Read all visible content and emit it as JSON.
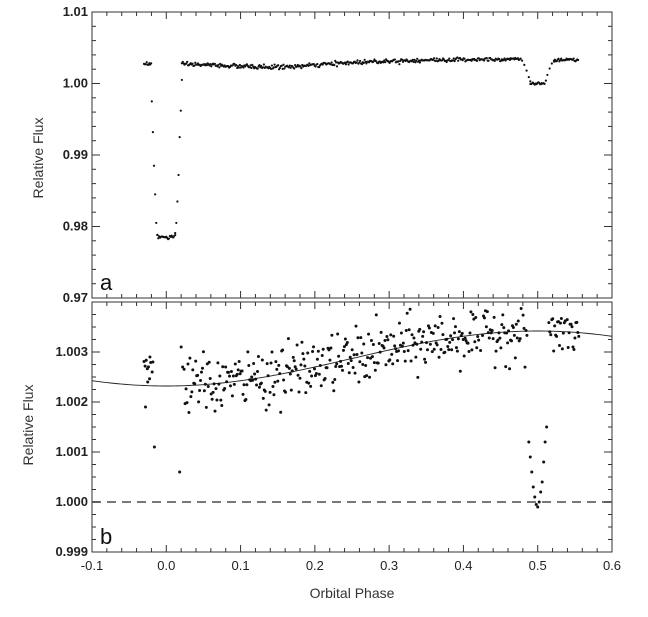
{
  "chart_data": [
    {
      "type": "scatter",
      "panel_label": "a",
      "ylabel": "Relative Flux",
      "xlabel": "",
      "xlim": [
        -0.1,
        0.6
      ],
      "ylim": [
        0.97,
        1.01
      ],
      "y_ticks": [
        0.97,
        0.98,
        0.99,
        1.0,
        1.01
      ],
      "y_tick_labels": [
        "0.97",
        "0.98",
        "0.99",
        "1.00",
        "1.01"
      ],
      "series": [
        {
          "baseline_out_of_eclipse": {
            "start_phase": -0.03,
            "end_phase": 0.555,
            "flux_start": 1.0028,
            "flux_dip": 1.0021,
            "flux_max": 1.0035
          },
          "primary_eclipse": {
            "center": 0.0,
            "half_width": 0.021,
            "depth_flux": 0.9785
          },
          "secondary_eclipse": {
            "center": 0.5,
            "half_width": 0.022,
            "depth_flux": 1.0
          }
        }
      ]
    },
    {
      "type": "scatter",
      "panel_label": "b",
      "ylabel": "Relative Flux",
      "xlabel": "Orbital Phase",
      "xlim": [
        -0.1,
        0.6
      ],
      "ylim": [
        0.999,
        1.004
      ],
      "x_ticks": [
        -0.1,
        0.0,
        0.1,
        0.2,
        0.3,
        0.4,
        0.5,
        0.6
      ],
      "x_tick_labels": [
        "-0.1",
        "0.0",
        "0.1",
        "0.2",
        "0.3",
        "0.4",
        "0.5",
        "0.6"
      ],
      "y_ticks": [
        0.999,
        1.0,
        1.001,
        1.002,
        1.003
      ],
      "y_tick_labels": [
        "0.999",
        "1.000",
        "1.001",
        "1.002",
        "1.003"
      ],
      "reference_line": {
        "y": 1.0,
        "style": "dashed"
      },
      "model_curve": {
        "type": "sinusoid",
        "mean": 1.00287,
        "amplitude": 0.00055,
        "peak_phase": 0.5,
        "period": 1.0
      },
      "scatter_noise": 0.00028,
      "eclipse_points": [
        {
          "x": -0.028,
          "y": 1.0019
        },
        {
          "x": -0.025,
          "y": 1.0024
        },
        {
          "x": -0.022,
          "y": 1.0029
        },
        {
          "x": -0.019,
          "y": 1.0026
        },
        {
          "x": -0.018,
          "y": 1.0028
        },
        {
          "x": -0.016,
          "y": 1.0011
        },
        {
          "x": 0.018,
          "y": 1.0006
        },
        {
          "x": 0.02,
          "y": 1.0031
        },
        {
          "x": 0.022,
          "y": 1.0027
        },
        {
          "x": 0.488,
          "y": 1.0012
        },
        {
          "x": 0.49,
          "y": 1.0009
        },
        {
          "x": 0.492,
          "y": 1.0006
        },
        {
          "x": 0.494,
          "y": 1.0003
        },
        {
          "x": 0.496,
          "y": 1.0001
        },
        {
          "x": 0.498,
          "y": 0.99995
        },
        {
          "x": 0.5,
          "y": 0.9999
        },
        {
          "x": 0.502,
          "y": 1.0
        },
        {
          "x": 0.504,
          "y": 1.0002
        },
        {
          "x": 0.506,
          "y": 1.0004
        },
        {
          "x": 0.508,
          "y": 1.0008
        },
        {
          "x": 0.51,
          "y": 1.0012
        },
        {
          "x": 0.512,
          "y": 1.0015
        }
      ]
    }
  ]
}
